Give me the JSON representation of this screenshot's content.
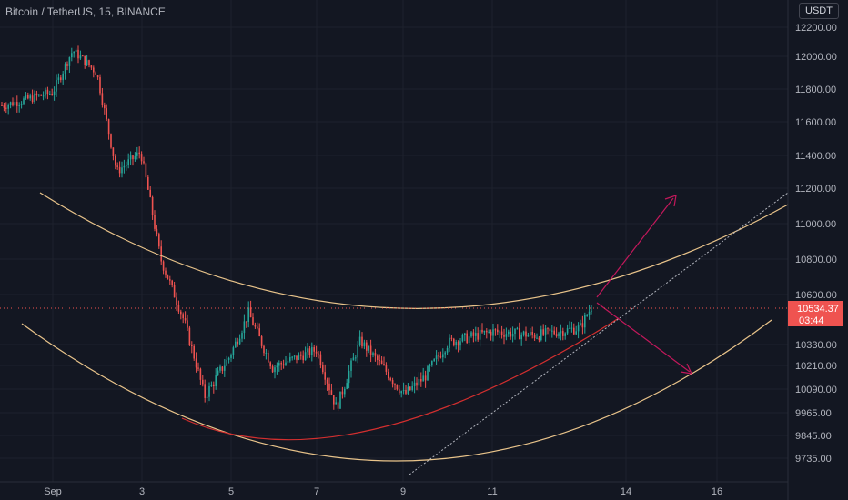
{
  "title": "Bitcoin / TetherUS, 15, BINANCE",
  "currency_button": "USDT",
  "price_tag": "10534.37",
  "countdown": "03:44",
  "colors": {
    "background": "#131722",
    "grid": "#1e222d",
    "axis_text": "#b2b5be",
    "candle_up": "#26a69a",
    "candle_down": "#ef5350",
    "arc": "#e8c38a",
    "support_curve": "#d32f2f",
    "arrows": "#c2185b",
    "trendline": "#b2b5be",
    "price_tag": "#ef5350"
  },
  "chart_data": {
    "type": "candlestick",
    "interval": "15",
    "symbol": "BTCUSDT",
    "exchange": "BINANCE",
    "grid": true,
    "x_ticks": [
      "Sep",
      "3",
      "5",
      "7",
      "9",
      "11",
      "14",
      "16"
    ],
    "y_ticks": [
      "12200.00",
      "12000.00",
      "11800.00",
      "11600.00",
      "11400.00",
      "11200.00",
      "11000.00",
      "10800.00",
      "10600.00",
      "10330.00",
      "10210.00",
      "10090.00",
      "9965.00",
      "9845.00",
      "9735.00"
    ],
    "last_price": 10534.37,
    "path": [
      [
        "Aug 31",
        11700
      ],
      [
        "Sep 1",
        11780
      ],
      [
        "Sep 1",
        12040
      ],
      [
        "Sep 2",
        11900
      ],
      [
        "Sep 2",
        11300
      ],
      [
        "Sep 3",
        11420
      ],
      [
        "Sep 3",
        10800
      ],
      [
        "Sep 4",
        10450
      ],
      [
        "Sep 4",
        10050
      ],
      [
        "Sep 5",
        10250
      ],
      [
        "Sep 5",
        10500
      ],
      [
        "Sep 6",
        10200
      ],
      [
        "Sep 7",
        10300
      ],
      [
        "Sep 7",
        9990
      ],
      [
        "Sep 8",
        10350
      ],
      [
        "Sep 9",
        10060
      ],
      [
        "Sep 9",
        10150
      ],
      [
        "Sep 10",
        10340
      ],
      [
        "Sep 11",
        10400
      ],
      [
        "Sep 12",
        10380
      ],
      [
        "Sep 13",
        10420
      ],
      [
        "Sep 13",
        10534.37
      ]
    ]
  }
}
